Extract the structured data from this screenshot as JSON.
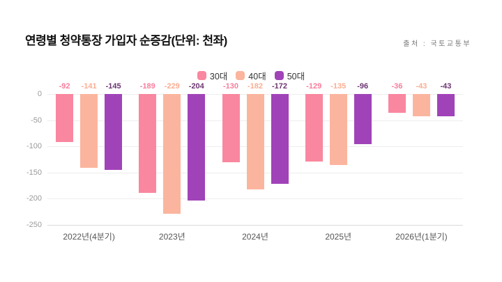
{
  "header": {
    "title": "연령별 청약통장 가입자 순증감(단위: 천좌)",
    "source": "출처 : 국토교통부"
  },
  "chart_data": {
    "type": "bar",
    "title": "연령별 청약통장 가입자 순증감(단위: 천좌)",
    "unit": "천좌",
    "categories": [
      "2022년(4분기)",
      "2023년",
      "2024년",
      "2025년",
      "2026년(1분기)"
    ],
    "series": [
      {
        "name": "30대",
        "color": "#f9879f",
        "label_color": "#f87d9c",
        "values": [
          -92,
          -189,
          -130,
          -129,
          -36
        ]
      },
      {
        "name": "40대",
        "color": "#fbb59e",
        "label_color": "#fbad92",
        "values": [
          -141,
          -229,
          -182,
          -135,
          -43
        ]
      },
      {
        "name": "50대",
        "color": "#a143b8",
        "label_color": "#6b3570",
        "values": [
          -145,
          -204,
          -172,
          -96,
          -43
        ]
      }
    ],
    "ylim": [
      -250,
      0
    ],
    "yticks": [
      0,
      -50,
      -100,
      -150,
      -200,
      -250
    ],
    "legend_position": "top-center",
    "grid": true
  }
}
